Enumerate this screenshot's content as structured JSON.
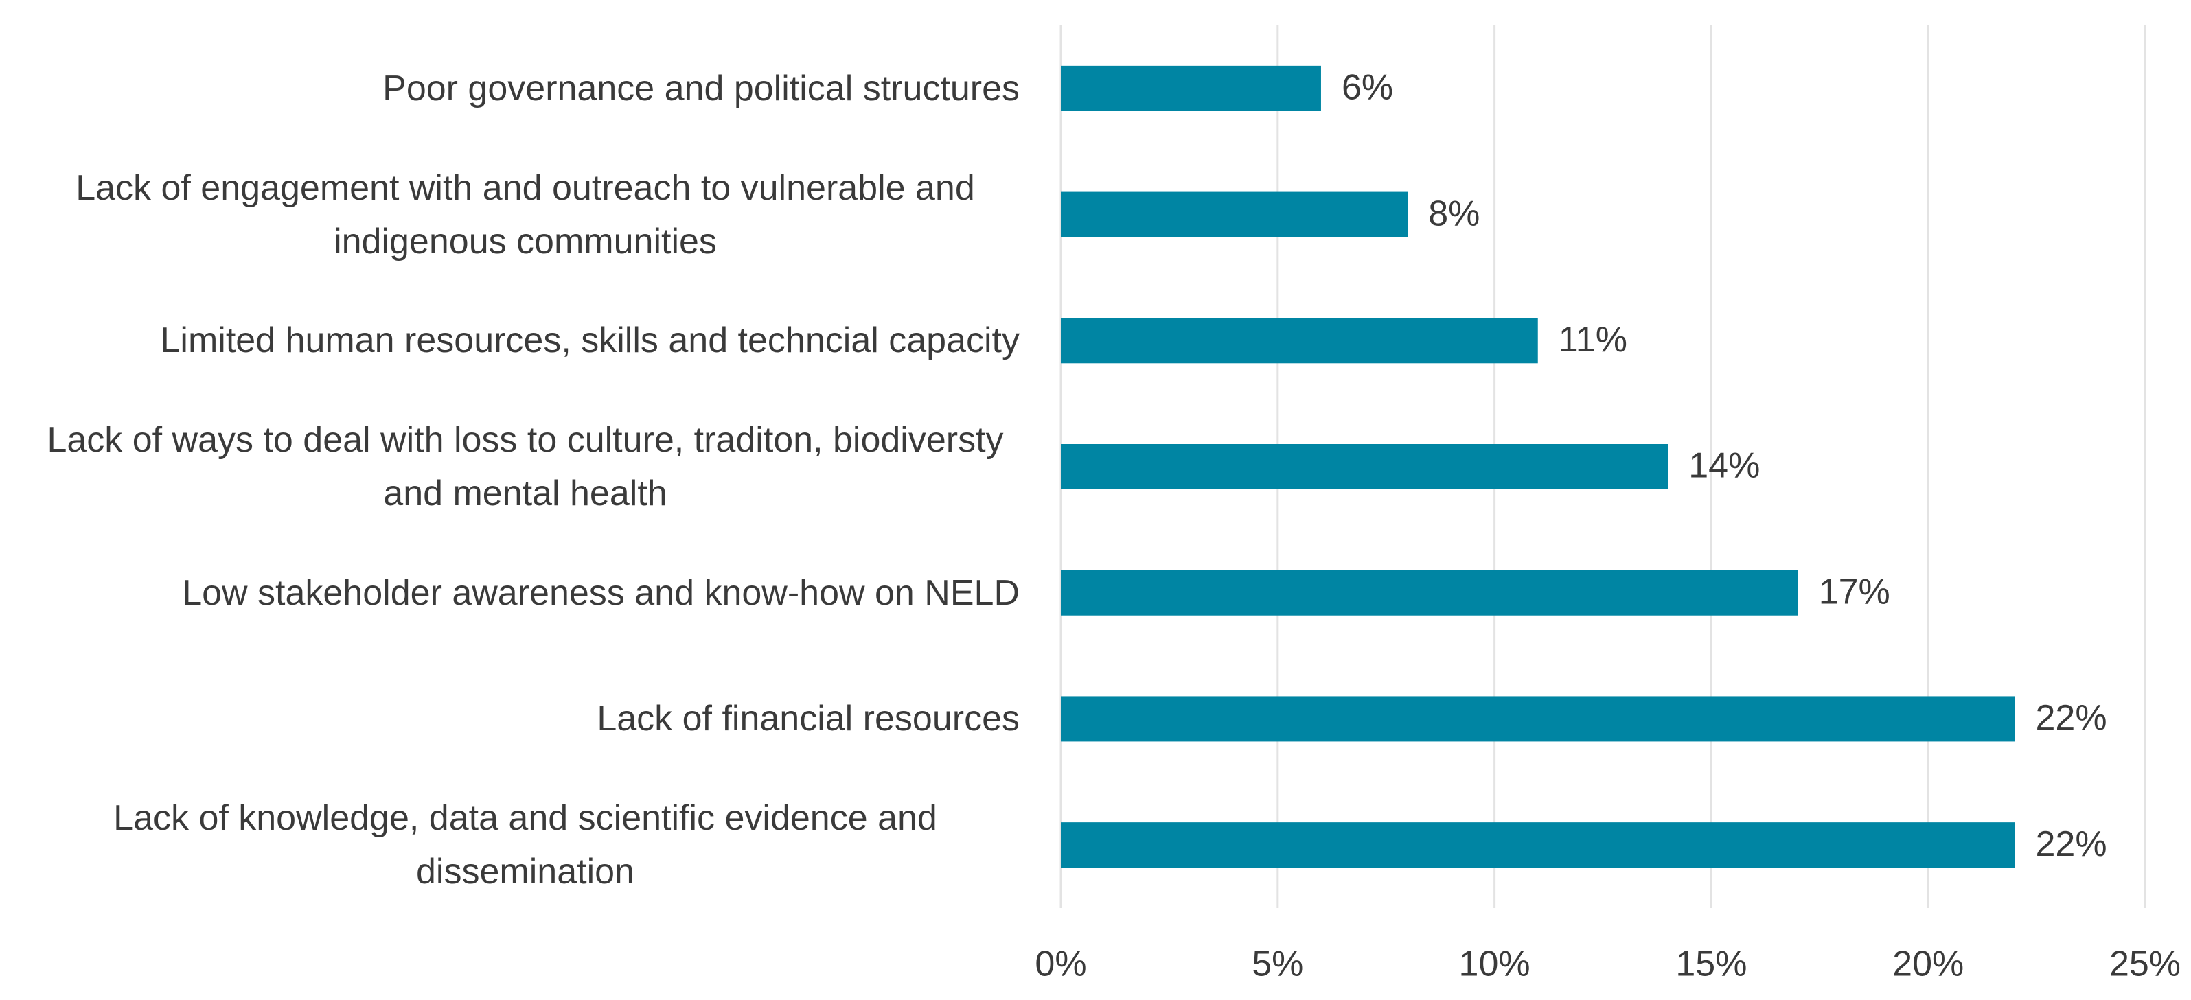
{
  "chart_data": {
    "type": "hbar",
    "categories": [
      "Poor governance and political structures",
      "Lack of engagement with and outreach to vulnerable and indigenous  communities",
      "Limited human resources, skills and techncial capacity",
      "Lack of ways to deal with loss to culture, traditon, biodiversty and mental health",
      "Low stakeholder awareness and know-how on NELD",
      "Lack of financial resources",
      "Lack of knowledge, data and scientific evidence and dissemination"
    ],
    "values": [
      6,
      8,
      11,
      14,
      17,
      22,
      22
    ],
    "value_labels": [
      "6%",
      "8%",
      "11%",
      "14%",
      "17%",
      "22%",
      "22%"
    ],
    "color": "#0085a3",
    "xlim": [
      0,
      25
    ],
    "xticks": [
      {
        "value": 0,
        "label": "0%"
      },
      {
        "value": 5,
        "label": "5%"
      },
      {
        "value": 10,
        "label": "10%"
      },
      {
        "value": 15,
        "label": "15%"
      },
      {
        "value": 20,
        "label": "20%"
      },
      {
        "value": 25,
        "label": "25%"
      }
    ],
    "grid": true
  }
}
